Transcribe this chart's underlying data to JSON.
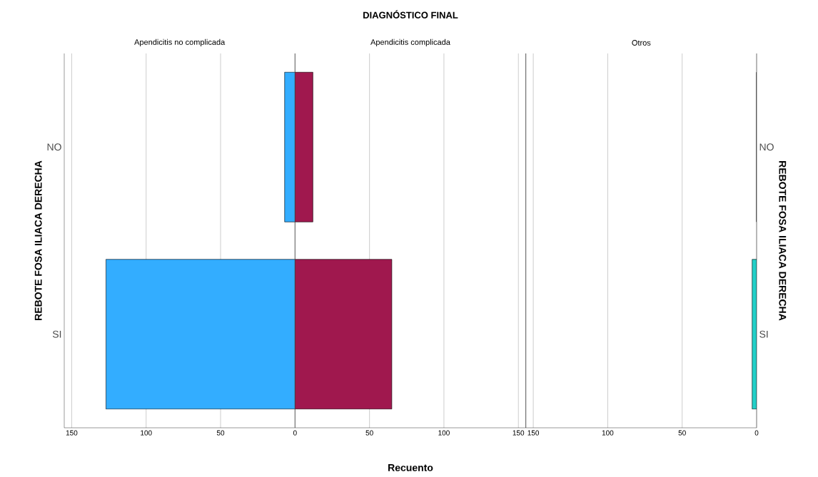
{
  "chart_data": [
    {
      "type": "bar",
      "orientation": "horizontal",
      "subtitle": "Apendicitis no complicada",
      "ylabel": "REBOTE FOSA ILIACA DERECHA",
      "categories": [
        "NO",
        "SI"
      ],
      "values": [
        7,
        127
      ],
      "color": "#33adff",
      "xlim": [
        155,
        0
      ],
      "xticks": [
        150,
        100,
        50
      ],
      "grid": "x"
    },
    {
      "type": "bar",
      "orientation": "horizontal",
      "title": "DIAGNÓSTICO FINAL",
      "subtitle": "Apendicitis complicada",
      "xlabel": "Recuento",
      "values": [
        12,
        65
      ],
      "color": "#a0184e",
      "xlim": [
        0,
        155
      ],
      "xticks": [
        0,
        50,
        100,
        150
      ],
      "grid": "x",
      "tick_labels": "x"
    },
    {
      "type": "bar",
      "orientation": "horizontal",
      "subtitle": "Otros",
      "y2label": "REBOTE FOSA ILIACA DERECHA",
      "categories": [
        "NO",
        "SI"
      ],
      "values": [
        0,
        3
      ],
      "color": "#23d0c8",
      "xlim": [
        155,
        0
      ],
      "xticks": [
        150,
        100,
        50,
        0
      ],
      "grid": "x"
    }
  ]
}
